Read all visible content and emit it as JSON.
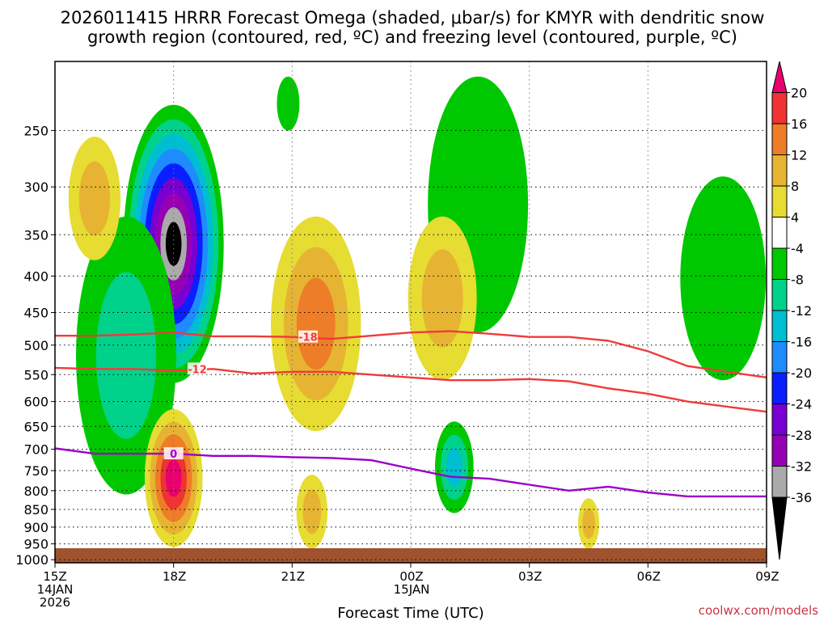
{
  "chart_data": {
    "type": "heatmap",
    "title_lines": [
      "2026011415 HRRR Forecast Omega (shaded, μbar/s) for KMYR with dendritic snow",
      "growth region (contoured, red, ºC) and freezing level (contoured, purple, ºC)"
    ],
    "xlabel": "Forecast Time (UTC)",
    "credit": "coolwx.com/models",
    "x_hours": [
      0,
      3,
      6,
      9,
      12,
      15,
      18
    ],
    "x_tick_labels": [
      [
        "15Z",
        "14JAN",
        "2026"
      ],
      [
        "18Z"
      ],
      [
        "21Z"
      ],
      [
        "00Z",
        "15JAN"
      ],
      [
        "03Z"
      ],
      [
        "06Z"
      ],
      [
        "09Z"
      ]
    ],
    "xlim": [
      0,
      18
    ],
    "y_levels": [
      250,
      300,
      350,
      400,
      450,
      500,
      550,
      600,
      650,
      700,
      750,
      800,
      850,
      900,
      950,
      1000
    ],
    "y_tick_labels": [
      "250",
      "300",
      "350",
      "400",
      "450",
      "500",
      "550",
      "600",
      "650",
      "700",
      "750",
      "800",
      "850",
      "900",
      "950",
      "1000"
    ],
    "ylim_hpa": [
      1000,
      200
    ],
    "colorbar": {
      "labels": [
        "20",
        "16",
        "12",
        "8",
        "4",
        "-4",
        "-8",
        "-12",
        "-16",
        "-20",
        "-24",
        "-28",
        "-32",
        "-36"
      ],
      "colors": [
        "#e8006e",
        "#f03232",
        "#ee7d28",
        "#e6b432",
        "#e6dc32",
        "#ffffff",
        "#00c800",
        "#00d28c",
        "#00bed2",
        "#1e8cff",
        "#0a1eff",
        "#7800d2",
        "#9600b4",
        "#aaaaaa",
        "#000000"
      ]
    },
    "omega_regions": [
      {
        "name": "strong-upward-core",
        "center_hour": 3.0,
        "top_hpa": 230,
        "bottom_hpa": 565,
        "peak": -40
      },
      {
        "name": "upward-band-left",
        "center_hour": 1.8,
        "top_hpa": 330,
        "bottom_hpa": 810,
        "peak": -8
      },
      {
        "name": "upward-upper-mid",
        "center_hour": 5.9,
        "top_hpa": 210,
        "bottom_hpa": 250,
        "peak": -6
      },
      {
        "name": "upward-upper-right",
        "center_hour": 10.7,
        "top_hpa": 210,
        "bottom_hpa": 480,
        "peak": -6
      },
      {
        "name": "upward-low-mid",
        "center_hour": 10.1,
        "top_hpa": 640,
        "bottom_hpa": 860,
        "peak": -14
      },
      {
        "name": "upward-right-edge",
        "center_hour": 16.9,
        "top_hpa": 290,
        "bottom_hpa": 560,
        "peak": -6
      },
      {
        "name": "downward-upper-left",
        "center_hour": 1.0,
        "top_hpa": 255,
        "bottom_hpa": 380,
        "peak": 9
      },
      {
        "name": "downward-low-mid-left",
        "center_hour": 3.0,
        "top_hpa": 615,
        "bottom_hpa": 960,
        "peak": 22
      },
      {
        "name": "downward-mid",
        "center_hour": 6.6,
        "top_hpa": 330,
        "bottom_hpa": 660,
        "peak": 12
      },
      {
        "name": "downward-right-mid",
        "center_hour": 9.8,
        "top_hpa": 330,
        "bottom_hpa": 560,
        "peak": 9
      },
      {
        "name": "downward-low-band",
        "center_hour": 6.5,
        "top_hpa": 760,
        "bottom_hpa": 965,
        "peak": 9
      },
      {
        "name": "downward-low-right",
        "center_hour": 13.5,
        "top_hpa": 820,
        "bottom_hpa": 965,
        "peak": 9
      }
    ],
    "contours": {
      "dgz_minus12": {
        "color": "#f03a3a",
        "label": "-12",
        "hours": [
          0,
          1,
          2,
          3,
          4,
          5,
          6,
          7,
          8,
          9,
          10,
          11,
          12,
          13,
          14,
          15,
          16,
          17,
          18
        ],
        "hpa": [
          538,
          540,
          540,
          543,
          540,
          548,
          545,
          545,
          550,
          555,
          560,
          560,
          558,
          562,
          575,
          585,
          600,
          610,
          620
        ]
      },
      "dgz_minus18": {
        "color": "#f03a3a",
        "label": "-18",
        "hours": [
          0,
          1,
          2,
          3,
          4,
          5,
          6,
          7,
          8,
          9,
          10,
          11,
          12,
          13,
          14,
          15,
          16,
          17,
          18
        ],
        "hpa": [
          485,
          485,
          483,
          480,
          486,
          486,
          487,
          490,
          485,
          480,
          478,
          482,
          487,
          487,
          493,
          510,
          535,
          545,
          555
        ]
      },
      "freezing_level": {
        "color": "#9a00c8",
        "label": "0",
        "hours": [
          0,
          1,
          2,
          3,
          4,
          5,
          6,
          7,
          8,
          9,
          10,
          11,
          12,
          13,
          14,
          15,
          16,
          17,
          18
        ],
        "hpa": [
          698,
          710,
          710,
          710,
          715,
          715,
          718,
          720,
          725,
          745,
          765,
          770,
          785,
          800,
          790,
          805,
          815,
          815,
          815
        ]
      }
    }
  }
}
